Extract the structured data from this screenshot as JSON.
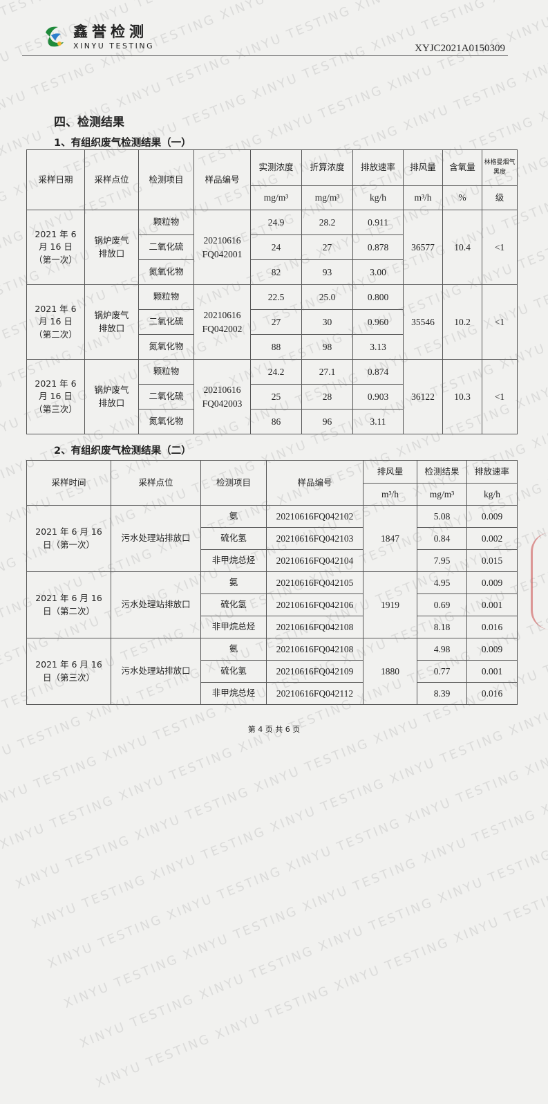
{
  "header": {
    "logo_cn": "鑫誉检测",
    "logo_en": "XINYU TESTING",
    "doc_number": "XYJC2021A0150309",
    "watermark": "XINYU TESTING"
  },
  "section_title": "四、检测结果",
  "table1": {
    "title": "1、有组织废气检测结果（一）",
    "headers": [
      "采样日期",
      "采样点位",
      "检测项目",
      "样品编号",
      "实测浓度",
      "折算浓度",
      "排放速率",
      "排风量",
      "含氧量",
      "林格曼烟气黑度"
    ],
    "units": [
      "mg/m³",
      "mg/m³",
      "kg/h",
      "m³/h",
      "%",
      "级"
    ],
    "groups": [
      {
        "date": "2021 年 6 月 16 日（第一次）",
        "point": "锅炉废气排放口",
        "sample": "20210616 FQ042001",
        "flow": "36577",
        "oxygen": "10.4",
        "ringelmann": "<1",
        "rows": [
          {
            "item": "颗粒物",
            "measured": "24.9",
            "converted": "28.2",
            "rate": "0.911"
          },
          {
            "item": "二氧化硫",
            "measured": "24",
            "converted": "27",
            "rate": "0.878"
          },
          {
            "item": "氮氧化物",
            "measured": "82",
            "converted": "93",
            "rate": "3.00"
          }
        ]
      },
      {
        "date": "2021 年 6 月 16 日（第二次）",
        "point": "锅炉废气排放口",
        "sample": "20210616 FQ042002",
        "flow": "35546",
        "oxygen": "10.2",
        "ringelmann": "<1",
        "rows": [
          {
            "item": "颗粒物",
            "measured": "22.5",
            "converted": "25.0",
            "rate": "0.800"
          },
          {
            "item": "二氧化硫",
            "measured": "27",
            "converted": "30",
            "rate": "0.960"
          },
          {
            "item": "氮氧化物",
            "measured": "88",
            "converted": "98",
            "rate": "3.13"
          }
        ]
      },
      {
        "date": "2021 年 6 月 16 日（第三次）",
        "point": "锅炉废气排放口",
        "sample": "20210616 FQ042003",
        "flow": "36122",
        "oxygen": "10.3",
        "ringelmann": "<1",
        "rows": [
          {
            "item": "颗粒物",
            "measured": "24.2",
            "converted": "27.1",
            "rate": "0.874"
          },
          {
            "item": "二氧化硫",
            "measured": "25",
            "converted": "28",
            "rate": "0.903"
          },
          {
            "item": "氮氧化物",
            "measured": "86",
            "converted": "96",
            "rate": "3.11"
          }
        ]
      }
    ]
  },
  "table2": {
    "title": "2、有组织废气检测结果（二）",
    "headers": [
      "采样时间",
      "采样点位",
      "检测项目",
      "样品编号",
      "排风量",
      "检测结果",
      "排放速率"
    ],
    "units": [
      "m³/h",
      "mg/m³",
      "kg/h"
    ],
    "groups": [
      {
        "date": "2021 年 6 月 16 日（第一次）",
        "point": "污水处理站排放口",
        "flow": "1847",
        "rows": [
          {
            "item": "氨",
            "sample": "20210616FQ042102",
            "result": "5.08",
            "rate": "0.009"
          },
          {
            "item": "硫化氢",
            "sample": "20210616FQ042103",
            "result": "0.84",
            "rate": "0.002"
          },
          {
            "item": "非甲烷总烃",
            "sample": "20210616FQ042104",
            "result": "7.95",
            "rate": "0.015"
          }
        ]
      },
      {
        "date": "2021 年 6 月 16 日（第二次）",
        "point": "污水处理站排放口",
        "flow": "1919",
        "rows": [
          {
            "item": "氨",
            "sample": "20210616FQ042105",
            "result": "4.95",
            "rate": "0.009"
          },
          {
            "item": "硫化氢",
            "sample": "20210616FQ042106",
            "result": "0.69",
            "rate": "0.001"
          },
          {
            "item": "非甲烷总烃",
            "sample": "20210616FQ042108",
            "result": "8.18",
            "rate": "0.016"
          }
        ]
      },
      {
        "date": "2021 年 6 月 16 日（第三次）",
        "point": "污水处理站排放口",
        "flow": "1880",
        "rows": [
          {
            "item": "氨",
            "sample": "20210616FQ042108",
            "result": "4.98",
            "rate": "0.009"
          },
          {
            "item": "硫化氢",
            "sample": "20210616FQ042109",
            "result": "0.77",
            "rate": "0.001"
          },
          {
            "item": "非甲烷总烃",
            "sample": "20210616FQ042112",
            "result": "8.39",
            "rate": "0.016"
          }
        ]
      }
    ]
  },
  "footer": {
    "page": "第 4 页 共 6 页"
  }
}
